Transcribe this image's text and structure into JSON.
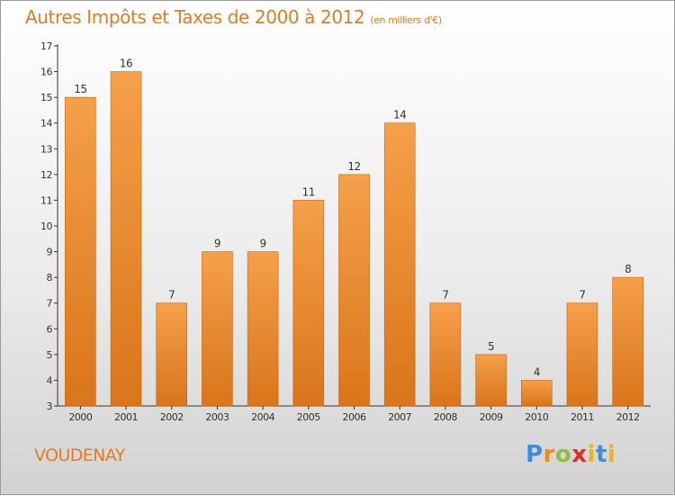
{
  "title": "Autres Impôts et Taxes de 2000 à 2012",
  "unit": "(en milliers d'€)",
  "place": "VOUDENAY",
  "brand": "Proxiti",
  "colors": {
    "bar_top": "#f5a04a",
    "bar_bottom": "#d9751a",
    "text_orange": "#e8791e"
  },
  "chart_data": {
    "type": "bar",
    "categories": [
      "2000",
      "2001",
      "2002",
      "2003",
      "2004",
      "2005",
      "2006",
      "2007",
      "2008",
      "2009",
      "2010",
      "2011",
      "2012"
    ],
    "values": [
      15,
      16,
      7,
      9,
      9,
      11,
      12,
      14,
      7,
      5,
      4,
      7,
      8
    ],
    "ylim": [
      3,
      17
    ],
    "yticks": [
      3,
      4,
      5,
      6,
      7,
      8,
      9,
      10,
      11,
      12,
      13,
      14,
      15,
      16,
      17
    ],
    "grid": false,
    "legend": "none"
  }
}
